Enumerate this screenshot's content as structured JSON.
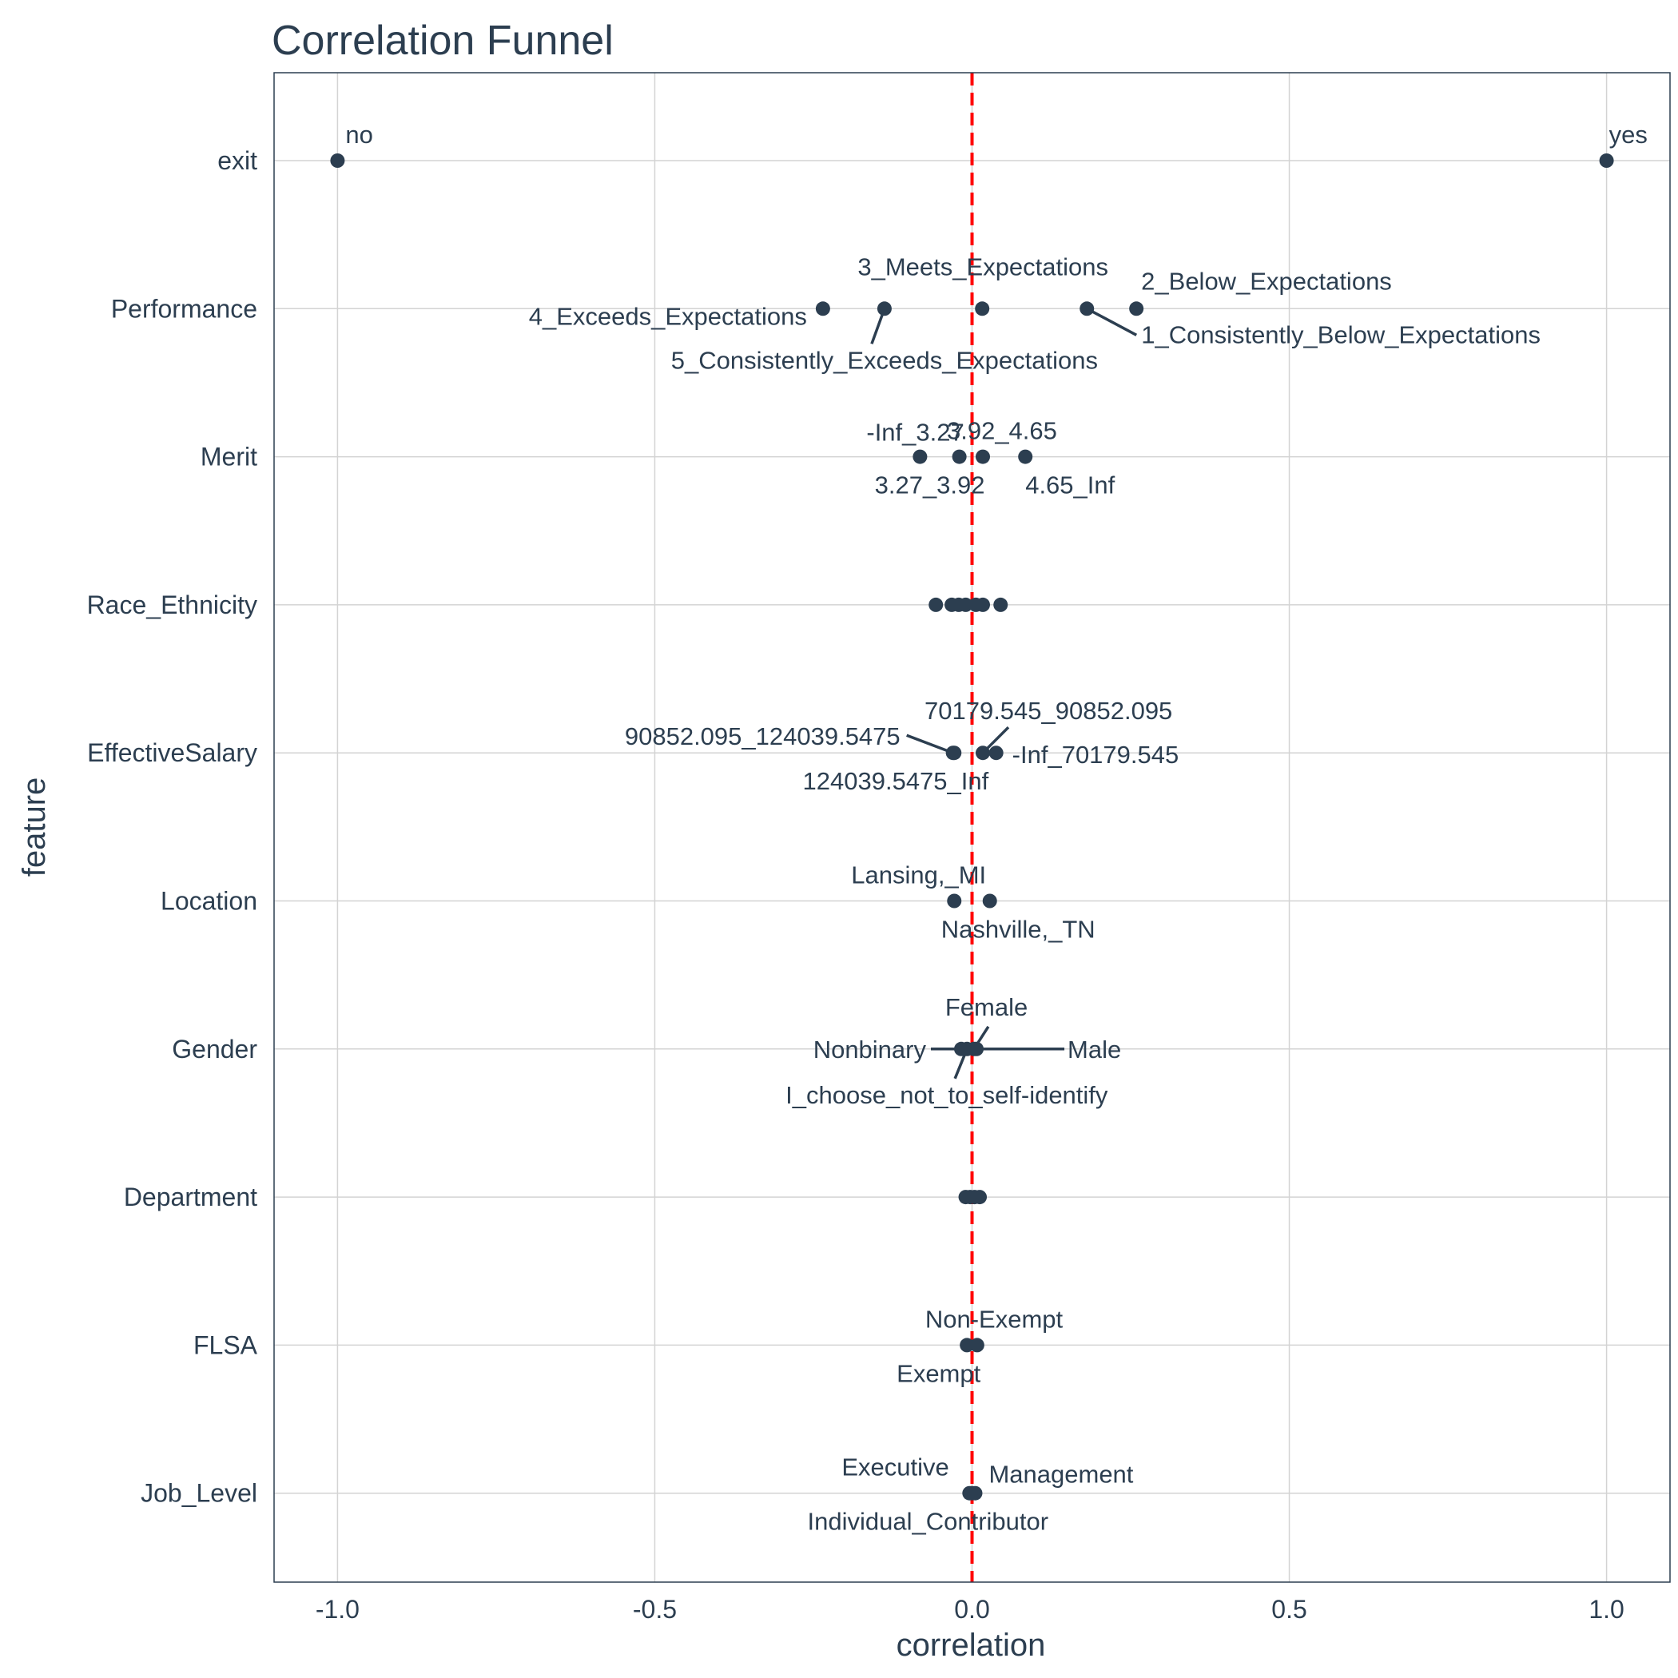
{
  "chart_data": {
    "type": "scatter",
    "title": "Correlation Funnel",
    "xlabel": "correlation",
    "ylabel": "feature",
    "xlim": [
      -1.1,
      1.1
    ],
    "xticks": [
      -1.0,
      -0.5,
      0.0,
      0.5,
      1.0
    ],
    "xtick_labels": [
      "-1.0",
      "-0.5",
      "0.0",
      "0.5",
      "1.0"
    ],
    "features": [
      "exit",
      "Performance",
      "Merit",
      "Race_Ethnicity",
      "EffectiveSalary",
      "Location",
      "Gender",
      "Department",
      "FLSA",
      "Job_Level"
    ],
    "reference_line": {
      "x": 0,
      "color": "#ff0000",
      "style": "dashed"
    },
    "point_color": "#2c3e50",
    "points": [
      {
        "feature": "exit",
        "x": -1.0,
        "label": "no"
      },
      {
        "feature": "exit",
        "x": 1.0,
        "label": "yes"
      },
      {
        "feature": "Performance",
        "x": -0.235,
        "label": "4_Exceeds_Expectations"
      },
      {
        "feature": "Performance",
        "x": -0.138,
        "label": "5_Consistently_Exceeds_Expectations"
      },
      {
        "feature": "Performance",
        "x": 0.016,
        "label": "3_Meets_Expectations"
      },
      {
        "feature": "Performance",
        "x": 0.181,
        "label": "1_Consistently_Below_Expectations"
      },
      {
        "feature": "Performance",
        "x": 0.259,
        "label": "2_Below_Expectations"
      },
      {
        "feature": "Merit",
        "x": -0.082,
        "label": "-Inf_3.27"
      },
      {
        "feature": "Merit",
        "x": -0.02,
        "label": "3.27_3.92"
      },
      {
        "feature": "Merit",
        "x": 0.017,
        "label": "3.92_4.65"
      },
      {
        "feature": "Merit",
        "x": 0.084,
        "label": "4.65_Inf"
      },
      {
        "feature": "Race_Ethnicity",
        "x": -0.057,
        "label": ""
      },
      {
        "feature": "Race_Ethnicity",
        "x": -0.032,
        "label": ""
      },
      {
        "feature": "Race_Ethnicity",
        "x": -0.021,
        "label": ""
      },
      {
        "feature": "Race_Ethnicity",
        "x": -0.01,
        "label": ""
      },
      {
        "feature": "Race_Ethnicity",
        "x": 0.006,
        "label": ""
      },
      {
        "feature": "Race_Ethnicity",
        "x": 0.017,
        "label": ""
      },
      {
        "feature": "Race_Ethnicity",
        "x": 0.045,
        "label": ""
      },
      {
        "feature": "EffectiveSalary",
        "x": -0.03,
        "label": "90852.095_124039.5475"
      },
      {
        "feature": "EffectiveSalary",
        "x": -0.028,
        "label": "124039.5475_Inf"
      },
      {
        "feature": "EffectiveSalary",
        "x": 0.017,
        "label": "70179.545_90852.095"
      },
      {
        "feature": "EffectiveSalary",
        "x": 0.038,
        "label": "-Inf_70179.545"
      },
      {
        "feature": "Location",
        "x": -0.028,
        "label": "Lansing,_MI"
      },
      {
        "feature": "Location",
        "x": 0.028,
        "label": "Nashville,_TN"
      },
      {
        "feature": "Gender",
        "x": -0.017,
        "label": "Nonbinary"
      },
      {
        "feature": "Gender",
        "x": -0.008,
        "label": "I_choose_not_to_self-identify"
      },
      {
        "feature": "Gender",
        "x": 0.003,
        "label": "Female"
      },
      {
        "feature": "Gender",
        "x": 0.007,
        "label": "Male"
      },
      {
        "feature": "Department",
        "x": -0.01,
        "label": ""
      },
      {
        "feature": "Department",
        "x": -0.003,
        "label": ""
      },
      {
        "feature": "Department",
        "x": 0.004,
        "label": ""
      },
      {
        "feature": "Department",
        "x": 0.012,
        "label": ""
      },
      {
        "feature": "FLSA",
        "x": -0.008,
        "label": "Exempt"
      },
      {
        "feature": "FLSA",
        "x": 0.008,
        "label": "Non-Exempt"
      },
      {
        "feature": "Job_Level",
        "x": -0.004,
        "label": "Executive"
      },
      {
        "feature": "Job_Level",
        "x": 0.0,
        "label": "Individual_Contributor"
      },
      {
        "feature": "Job_Level",
        "x": 0.005,
        "label": "Management"
      }
    ]
  }
}
